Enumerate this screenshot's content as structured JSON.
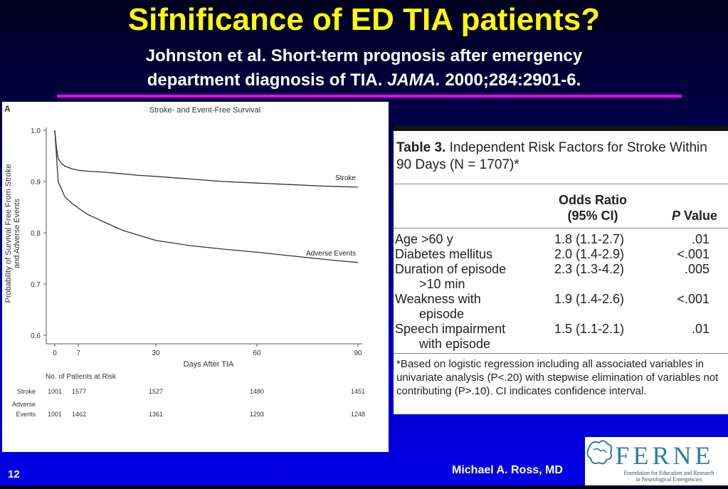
{
  "slide": {
    "title": "Sifnificance of ED TIA patients?",
    "subtitle_line1": "Johnston et al. Short-term prognosis after emergency",
    "subtitle_line2_a": "department diagnosis of TIA. ",
    "subtitle_line2_journal": "JAMA.",
    "subtitle_line2_b": " 2000;284:2901-6.",
    "slide_number": "12",
    "author": "Michael A. Ross, MD",
    "accent_color": "#ff00ff",
    "title_color": "#ffff00"
  },
  "chart_data": {
    "type": "line",
    "panel_label": "A",
    "title": "Stroke- and Event-Free Survival",
    "xlabel": "Days After TIA",
    "ylabel_line1": "Probability of Survival Free From Stroke",
    "ylabel_line2": "and Adverse Events",
    "xlim": [
      0,
      90
    ],
    "ylim": [
      0.6,
      1.0
    ],
    "x_ticks": [
      "0",
      "7",
      "30",
      "60",
      "90"
    ],
    "x_tick_values": [
      0,
      7,
      30,
      60,
      90
    ],
    "y_ticks": [
      "0.6",
      "0.7",
      "0.8",
      "0.9",
      "1.0"
    ],
    "y_tick_values": [
      0.6,
      0.7,
      0.8,
      0.9,
      1.0
    ],
    "series": [
      {
        "name": "Stroke",
        "x": [
          0,
          0.5,
          1,
          2,
          3,
          5,
          7,
          10,
          15,
          20,
          25,
          30,
          40,
          50,
          60,
          70,
          80,
          85,
          90
        ],
        "y": [
          1.0,
          0.965,
          0.945,
          0.935,
          0.93,
          0.925,
          0.922,
          0.92,
          0.918,
          0.915,
          0.912,
          0.91,
          0.905,
          0.9,
          0.897,
          0.894,
          0.891,
          0.89,
          0.889
        ]
      },
      {
        "name": "Adverse Events",
        "x": [
          0,
          0.5,
          1,
          2,
          3,
          5,
          7,
          10,
          15,
          20,
          25,
          30,
          40,
          50,
          60,
          70,
          80,
          85,
          90
        ],
        "y": [
          1.0,
          0.95,
          0.9,
          0.885,
          0.87,
          0.858,
          0.848,
          0.835,
          0.82,
          0.805,
          0.795,
          0.785,
          0.775,
          0.768,
          0.762,
          0.755,
          0.748,
          0.745,
          0.742
        ]
      }
    ],
    "at_risk": {
      "header": "No. of Patients at Risk",
      "rows": [
        {
          "label": "Stroke",
          "values": [
            "1001",
            "1577",
            "1527",
            "1480",
            "1451"
          ]
        },
        {
          "label": "Adverse",
          "values": []
        },
        {
          "label": "Events",
          "values": [
            "1001",
            "1462",
            "1361",
            "1293",
            "1248"
          ]
        }
      ]
    }
  },
  "table": {
    "caption_bold": "Table 3.",
    "caption_rest": " Independent Risk Factors for Stroke Within 90 Days (N = 1707)*",
    "col_or_line1": "Odds Ratio",
    "col_or_line2": "(95% CI)",
    "col_p_italic": "P",
    "col_p_rest": " Value",
    "rows": [
      {
        "factor": "Age >60 y",
        "factor2": "",
        "or": "1.8 (1.1-2.7)",
        "p": ".01"
      },
      {
        "factor": "Diabetes mellitus",
        "factor2": "",
        "or": "2.0 (1.4-2.9)",
        "p": "<.001"
      },
      {
        "factor": "Duration of episode",
        "factor2": ">10 min",
        "or": "2.3 (1.3-4.2)",
        "p": ".005"
      },
      {
        "factor": "Weakness with",
        "factor2": "episode",
        "or": "1.9 (1.4-2.6)",
        "p": "<.001"
      },
      {
        "factor": "Speech impairment",
        "factor2": "with episode",
        "or": "1.5 (1.1-2.1)",
        "p": ".01"
      }
    ],
    "footnote": "*Based on logistic regression including all associated variables in univariate analysis (P<.20) with stepwise elimination of variables not contributing (P>.10). CI indicates confidence interval."
  },
  "logo": {
    "letters": "FERNE",
    "tagline_line1": "Foundation for Education and Research",
    "tagline_line2": "in Neurological Emergencies",
    "color": "#2a7fa0"
  }
}
